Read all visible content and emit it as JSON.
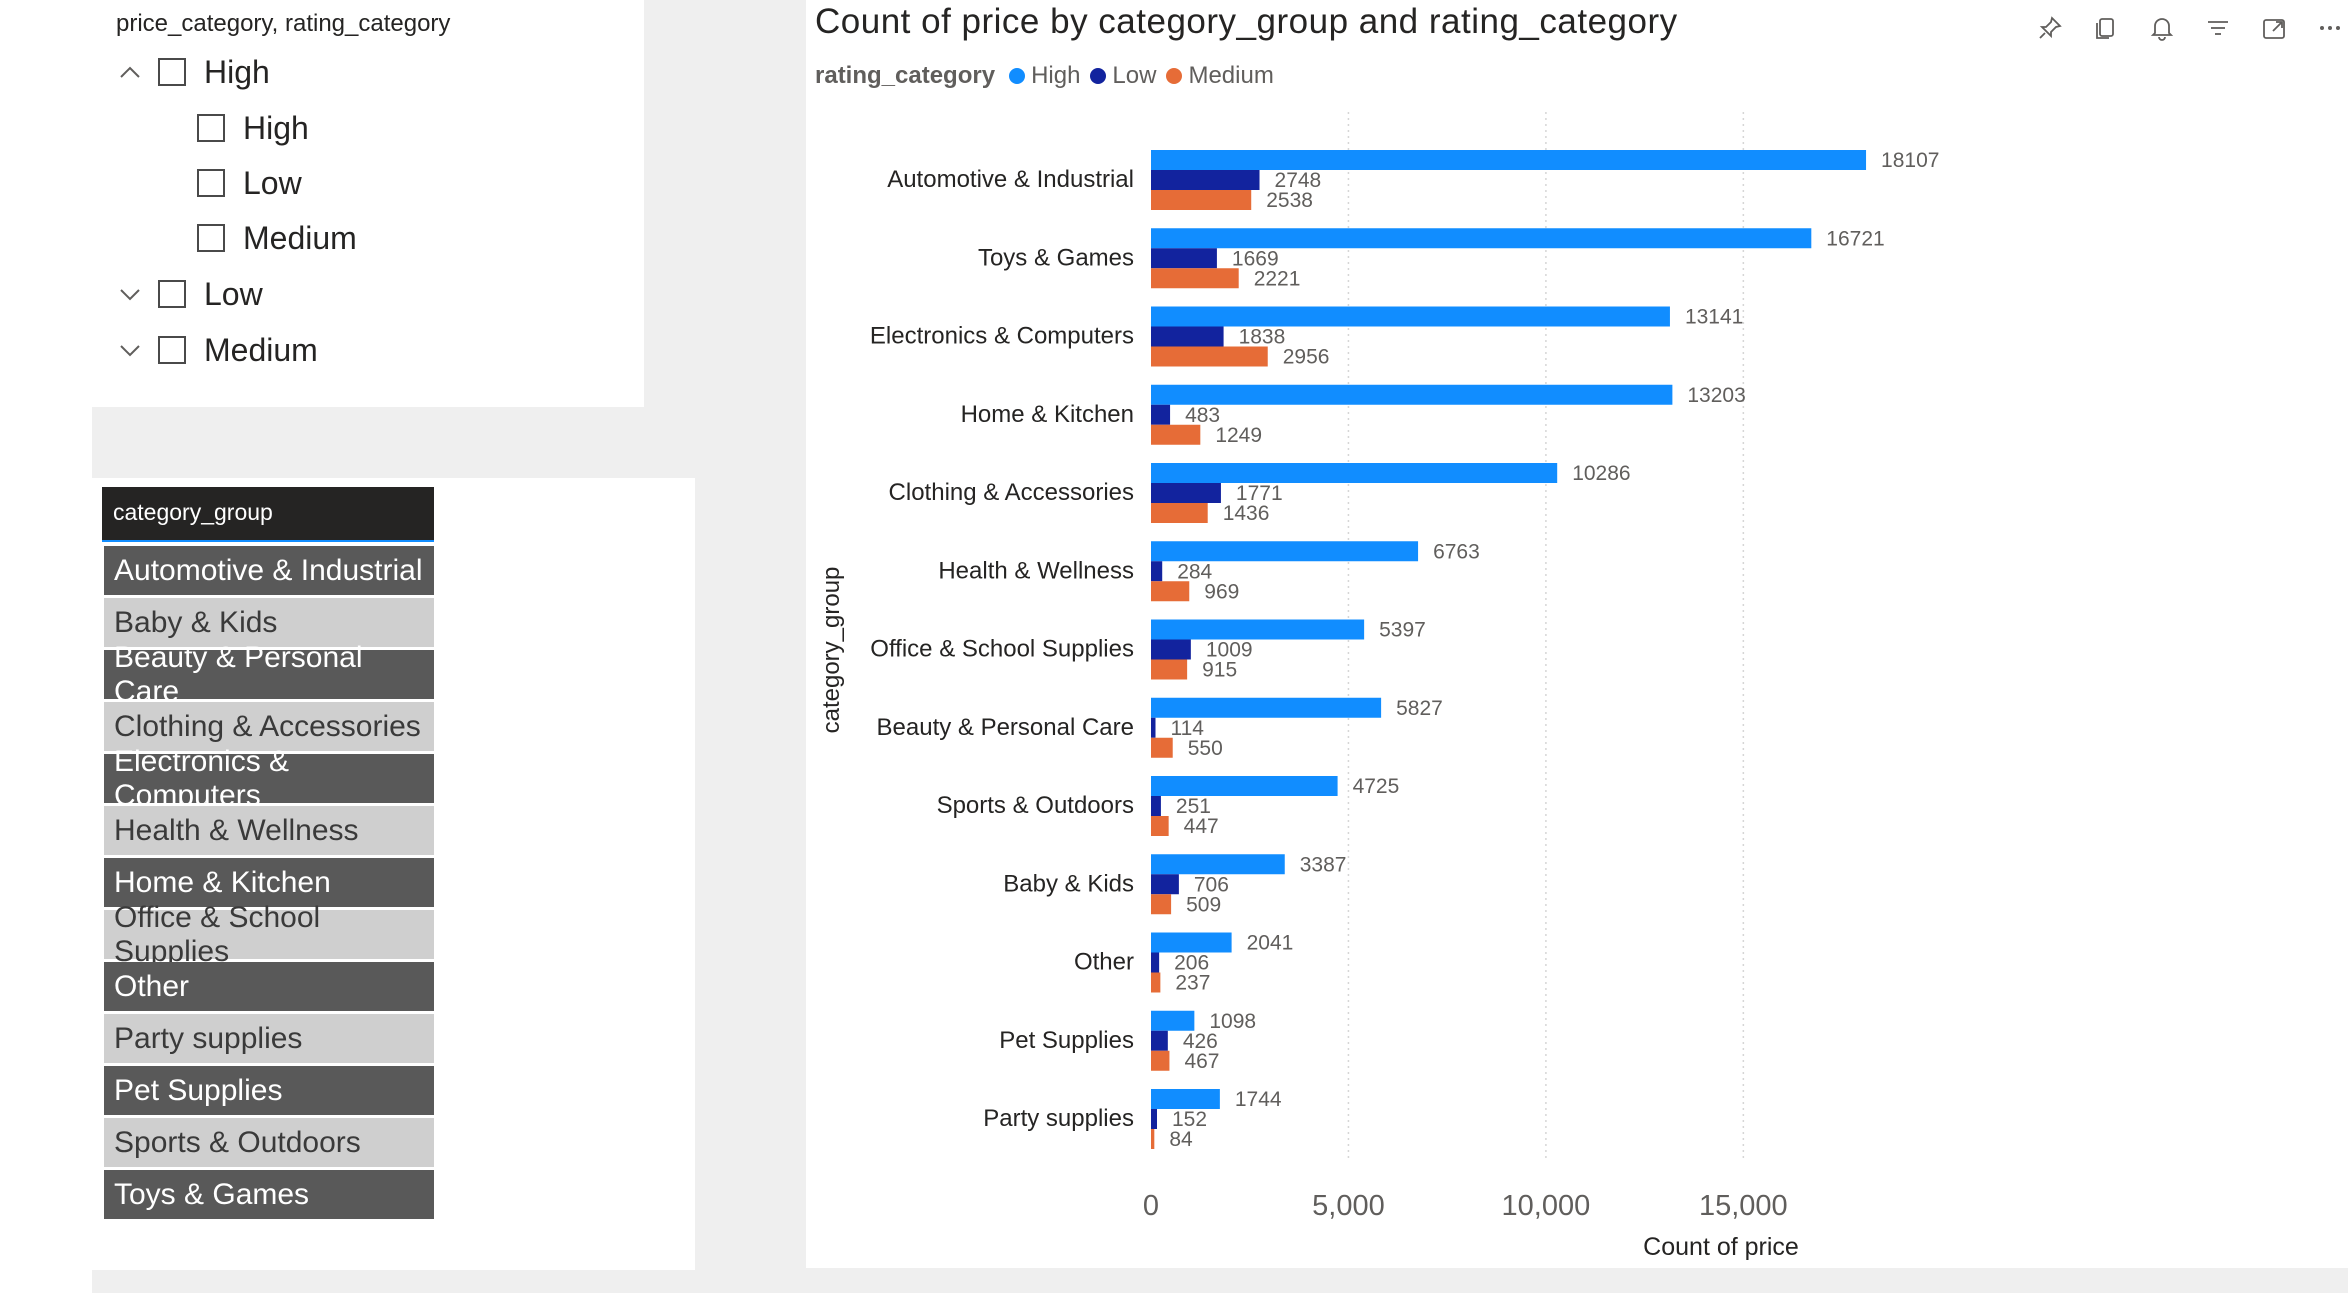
{
  "slicer_tree": {
    "title": "price_category, rating_category",
    "nodes": [
      {
        "label": "High",
        "expanded": true,
        "level": 0
      },
      {
        "label": "High",
        "level": 1
      },
      {
        "label": "Low",
        "level": 1
      },
      {
        "label": "Medium",
        "level": 1
      },
      {
        "label": "Low",
        "expanded": false,
        "level": 0
      },
      {
        "label": "Medium",
        "expanded": false,
        "level": 0
      }
    ]
  },
  "slicer_tiles": {
    "header": "category_group",
    "items": [
      "Automotive & Industrial",
      "Baby & Kids",
      "Beauty & Personal Care",
      "Clothing & Accessories",
      "Electronics & Computers",
      "Health & Wellness",
      "Home & Kitchen",
      "Office & School Supplies",
      "Other",
      "Party supplies",
      "Pet Supplies",
      "Sports & Outdoors",
      "Toys & Games"
    ]
  },
  "toolbar": {
    "icons": [
      "pin-icon",
      "copy-icon",
      "bell-icon",
      "filter-icon",
      "focus-mode-icon",
      "more-options-icon"
    ]
  },
  "chart": {
    "title": "Count of price by category_group and rating_category",
    "legend_title": "rating_category"
  },
  "colors": {
    "High": "#118dff",
    "Low": "#12239e",
    "Medium": "#e66c37"
  },
  "chart_data": {
    "type": "bar",
    "orientation": "horizontal",
    "title": "Count of price by category_group and rating_category",
    "xlabel": "Count of price",
    "ylabel": "category_group",
    "xlim": [
      0,
      19000
    ],
    "xticks": [
      0,
      5000,
      10000,
      15000
    ],
    "xtick_labels": [
      "0",
      "5,000",
      "10,000",
      "15,000"
    ],
    "grid": true,
    "legend_position": "top-left",
    "categories": [
      "Automotive & Industrial",
      "Toys & Games",
      "Electronics & Computers",
      "Home & Kitchen",
      "Clothing & Accessories",
      "Health & Wellness",
      "Office & School Supplies",
      "Beauty & Personal Care",
      "Sports & Outdoors",
      "Baby & Kids",
      "Other",
      "Pet Supplies",
      "Party supplies"
    ],
    "series": [
      {
        "name": "High",
        "values": [
          18107,
          16721,
          13141,
          13203,
          10286,
          6763,
          5397,
          5827,
          4725,
          3387,
          2041,
          1098,
          1744
        ]
      },
      {
        "name": "Low",
        "values": [
          2748,
          1669,
          1838,
          483,
          1771,
          284,
          1009,
          114,
          251,
          706,
          206,
          426,
          152
        ]
      },
      {
        "name": "Medium",
        "values": [
          2538,
          2221,
          2956,
          1249,
          1436,
          969,
          915,
          550,
          447,
          509,
          237,
          467,
          84
        ]
      }
    ]
  }
}
